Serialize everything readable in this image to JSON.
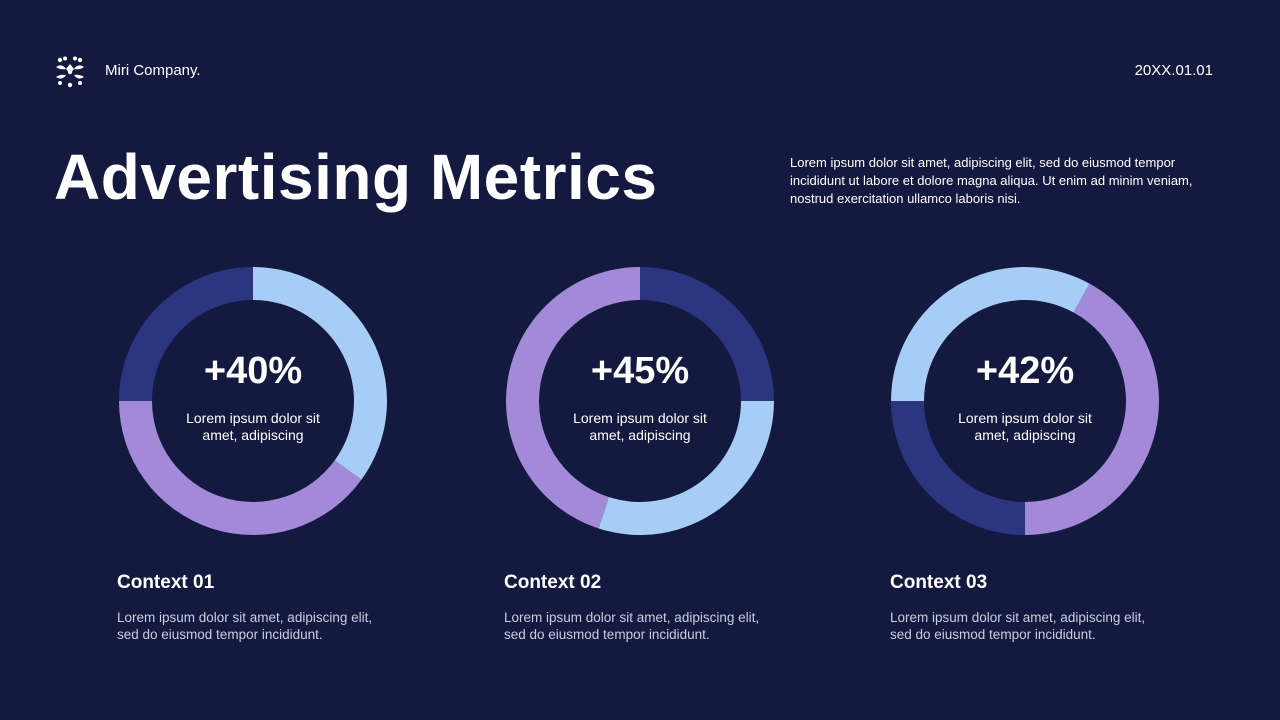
{
  "header": {
    "company": "Miri Company.",
    "date": "20XX.01.01",
    "logo_icon": "snowflake-dots-icon"
  },
  "title": "Advertising Metrics",
  "intro": "Lorem ipsum dolor sit amet, adipiscing elit, sed do eiusmod tempor incididunt ut labore et dolore magna aliqua. Ut enim ad minim veniam, nostrud exercitation ullamco laboris nisi.",
  "colors": {
    "background": "#141a3f",
    "light_blue": "#a7cdf6",
    "purple": "#a38ad8",
    "navy": "#2c3580"
  },
  "chart_data": [
    {
      "type": "pie",
      "variant": "donut",
      "center_value": "+40%",
      "center_label": "Lorem ipsum dolor sit amet, adipiscing",
      "start_angle_deg": 0,
      "segments": [
        {
          "color": "light_blue",
          "value": 35
        },
        {
          "color": "purple",
          "value": 40
        },
        {
          "color": "navy",
          "value": 25
        }
      ],
      "context_title": "Context 01",
      "context_text": "Lorem ipsum dolor sit amet, adipiscing elit, sed do eiusmod tempor incididunt."
    },
    {
      "type": "pie",
      "variant": "donut",
      "center_value": "+45%",
      "center_label": "Lorem ipsum dolor sit amet, adipiscing",
      "start_angle_deg": 0,
      "segments": [
        {
          "color": "navy",
          "value": 25
        },
        {
          "color": "light_blue",
          "value": 30
        },
        {
          "color": "purple",
          "value": 45
        }
      ],
      "context_title": "Context 02",
      "context_text": "Lorem ipsum dolor sit amet, adipiscing elit, sed do eiusmod tempor incididunt."
    },
    {
      "type": "pie",
      "variant": "donut",
      "center_value": "+42%",
      "center_label": "Lorem ipsum dolor sit amet, adipiscing",
      "start_angle_deg": 180,
      "segments": [
        {
          "color": "navy",
          "value": 25
        },
        {
          "color": "light_blue",
          "value": 33
        },
        {
          "color": "purple",
          "value": 42
        }
      ],
      "context_title": "Context 03",
      "context_text": "Lorem ipsum dolor sit amet, adipiscing elit, sed do eiusmod tempor incididunt."
    }
  ]
}
